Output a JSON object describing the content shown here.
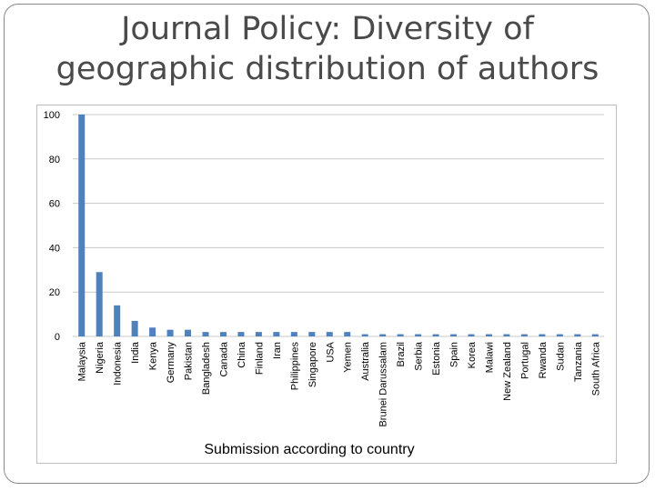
{
  "slide": {
    "title_line1": "Journal Policy: Diversity of",
    "title_line2": "geographic distribution of authors"
  },
  "chart_data": {
    "type": "bar",
    "title": "Journal Policy: Diversity of geographic distribution of authors",
    "xlabel": "Submission according to country",
    "ylabel": "",
    "ylim": [
      0,
      100
    ],
    "yticks": [
      0,
      20,
      40,
      60,
      80,
      100
    ],
    "grid": true,
    "bar_color": "#4f81bd",
    "grid_color": "#c8c8c8",
    "categories": [
      "Malaysia",
      "Nigeria",
      "Indonesia",
      "India",
      "Kenya",
      "Germany",
      "Pakistan",
      "Bangladesh",
      "Canada",
      "China",
      "Finland",
      "Iran",
      "Philippines",
      "Singapore",
      "USA",
      "Yemen",
      "Australia",
      "Brunei Darussalam",
      "Brazil",
      "Serbia",
      "Estonia",
      "Spain",
      "Korea",
      "Malawi",
      "New Zealand",
      "Portugal",
      "Rwanda",
      "Sudan",
      "Tanzania",
      "South Africa"
    ],
    "values": [
      100,
      29,
      14,
      7,
      4,
      3,
      3,
      2,
      2,
      2,
      2,
      2,
      2,
      2,
      2,
      2,
      1,
      1,
      1,
      1,
      1,
      1,
      1,
      1,
      1,
      1,
      1,
      1,
      1,
      1
    ]
  }
}
